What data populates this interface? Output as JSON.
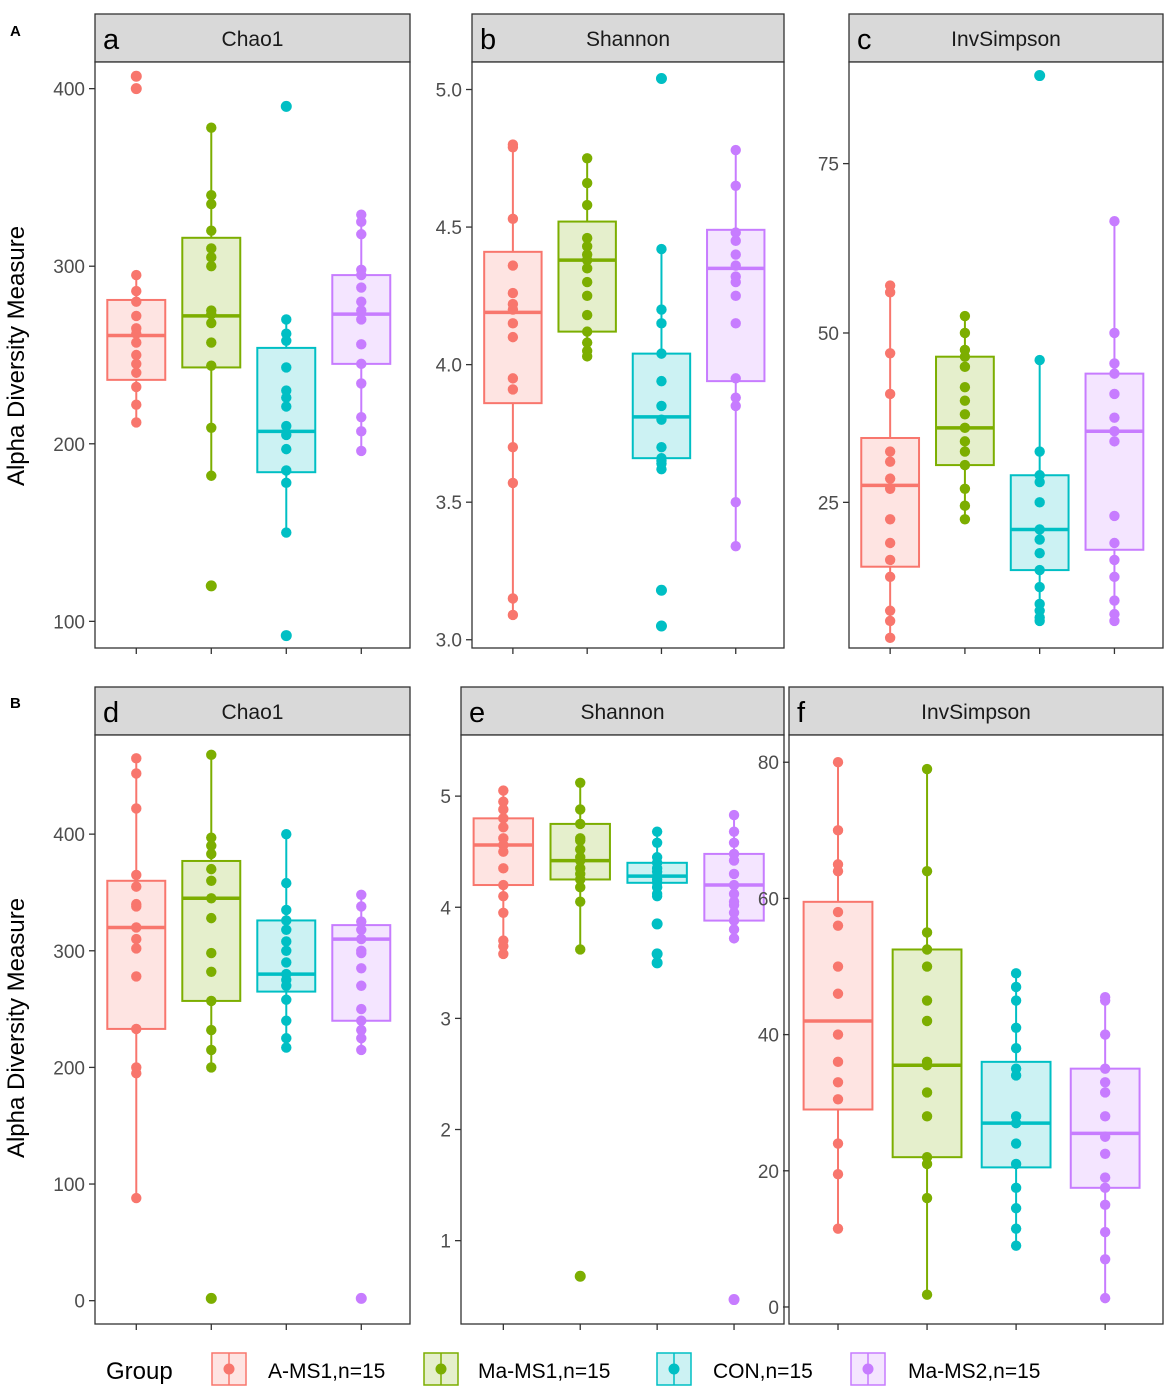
{
  "figure": {
    "row_labels": [
      "A",
      "B"
    ],
    "y_axis_title": "Alpha Diversity Measure",
    "legend_title": "Group"
  },
  "groups": [
    {
      "name": "A-MS1,n=15",
      "color": "#F8766D"
    },
    {
      "name": "Ma-MS1,n=15",
      "color": "#7CAE00"
    },
    {
      "name": "CON,n=15",
      "color": "#00BFC4"
    },
    {
      "name": "Ma-MS2,n=15",
      "color": "#C77CFF"
    }
  ],
  "chart_data": [
    {
      "panel": "a",
      "row": "A",
      "title": "Chao1",
      "type": "boxplot",
      "ylim": [
        85,
        415
      ],
      "yticks": [
        100,
        200,
        300,
        400
      ],
      "ytick_labels": [
        "100",
        "200",
        "300",
        "400"
      ],
      "categories": [
        "A-MS1,n=15",
        "Ma-MS1,n=15",
        "CON,n=15",
        "Ma-MS2,n=15"
      ],
      "boxes": [
        {
          "min": 212,
          "q1": 236,
          "median": 261,
          "q3": 281,
          "max": 295,
          "outliers": [
            400,
            407
          ]
        },
        {
          "min": 182,
          "q1": 243,
          "median": 272,
          "q3": 316,
          "max": 378,
          "outliers": [
            120
          ]
        },
        {
          "min": 150,
          "q1": 184,
          "median": 207,
          "q3": 254,
          "max": 270,
          "outliers": [
            92,
            390
          ]
        },
        {
          "min": 196,
          "q1": 245,
          "median": 273,
          "q3": 295,
          "max": 329,
          "outliers": []
        }
      ],
      "points": [
        [
          407,
          400,
          295,
          286,
          280,
          272,
          265,
          262,
          257,
          250,
          245,
          240,
          232,
          222,
          212
        ],
        [
          378,
          340,
          335,
          320,
          310,
          305,
          300,
          275,
          273,
          268,
          257,
          244,
          209,
          182,
          120
        ],
        [
          390,
          270,
          262,
          258,
          243,
          230,
          226,
          221,
          210,
          205,
          197,
          185,
          178,
          150,
          92
        ],
        [
          329,
          325,
          318,
          298,
          295,
          288,
          280,
          275,
          270,
          256,
          245,
          234,
          215,
          207,
          196
        ]
      ]
    },
    {
      "panel": "b",
      "row": "A",
      "title": "Shannon",
      "type": "boxplot",
      "ylim": [
        2.97,
        5.1
      ],
      "yticks": [
        3.0,
        3.5,
        4.0,
        4.5,
        5.0
      ],
      "ytick_labels": [
        "3.0",
        "3.5",
        "4.0",
        "4.5",
        "5.0"
      ],
      "categories": [
        "A-MS1,n=15",
        "Ma-MS1,n=15",
        "CON,n=15",
        "Ma-MS2,n=15"
      ],
      "boxes": [
        {
          "min": 3.09,
          "q1": 3.86,
          "median": 4.19,
          "q3": 4.41,
          "max": 4.8,
          "outliers": []
        },
        {
          "min": 4.03,
          "q1": 4.12,
          "median": 4.38,
          "q3": 4.52,
          "max": 4.75,
          "outliers": []
        },
        {
          "min": 3.62,
          "q1": 3.66,
          "median": 3.81,
          "q3": 4.04,
          "max": 4.42,
          "outliers": [
            3.05,
            3.18,
            5.04
          ]
        },
        {
          "min": 3.34,
          "q1": 3.94,
          "median": 4.35,
          "q3": 4.49,
          "max": 4.78,
          "outliers": []
        }
      ],
      "points": [
        [
          4.8,
          4.79,
          4.53,
          4.36,
          4.26,
          4.22,
          4.2,
          4.15,
          4.1,
          3.91,
          3.7,
          3.57,
          3.15,
          3.09,
          3.95
        ],
        [
          4.75,
          4.66,
          4.58,
          4.46,
          4.43,
          4.4,
          4.38,
          4.35,
          4.3,
          4.25,
          4.18,
          4.12,
          4.08,
          4.05,
          4.03
        ],
        [
          5.04,
          4.42,
          4.2,
          4.15,
          4.04,
          3.94,
          3.85,
          3.8,
          3.7,
          3.66,
          3.65,
          3.62,
          3.64,
          3.18,
          3.05
        ],
        [
          4.78,
          4.65,
          4.48,
          4.45,
          4.36,
          4.32,
          4.3,
          4.15,
          3.95,
          3.88,
          3.85,
          3.5,
          3.34,
          4.4,
          4.25
        ]
      ]
    },
    {
      "panel": "c",
      "row": "A",
      "title": "InvSimpson",
      "type": "boxplot",
      "ylim": [
        3.5,
        90
      ],
      "yticks": [
        25,
        50,
        75
      ],
      "ytick_labels": [
        "25",
        "50",
        "75"
      ],
      "categories": [
        "A-MS1,n=15",
        "Ma-MS1,n=15",
        "CON,n=15",
        "Ma-MS2,n=15"
      ],
      "boxes": [
        {
          "min": 5,
          "q1": 15.5,
          "median": 27.5,
          "q3": 34.5,
          "max": 57,
          "outliers": []
        },
        {
          "min": 22.5,
          "q1": 30.5,
          "median": 36,
          "q3": 46.5,
          "max": 52.5,
          "outliers": []
        },
        {
          "min": 7.5,
          "q1": 15,
          "median": 21,
          "q3": 29,
          "max": 46,
          "outliers": [
            88
          ]
        },
        {
          "min": 7.5,
          "q1": 18,
          "median": 35.5,
          "q3": 44,
          "max": 66.5,
          "outliers": []
        }
      ],
      "points": [
        [
          57,
          56,
          47,
          41,
          32.5,
          31,
          28.5,
          27,
          22.5,
          19,
          16.5,
          14,
          9,
          7.5,
          5
        ],
        [
          52.5,
          50,
          47.5,
          46.5,
          45,
          42,
          40,
          38,
          36,
          34,
          32.5,
          30.5,
          27,
          24.5,
          22.5
        ],
        [
          88,
          46,
          32.5,
          29,
          28,
          25,
          21,
          19.5,
          17.5,
          15,
          12.5,
          10,
          9,
          8,
          7.5
        ],
        [
          66.5,
          50,
          45.5,
          44,
          41,
          37.5,
          35.5,
          34,
          23,
          16.5,
          14,
          10.5,
          8.5,
          7.5,
          19
        ]
      ]
    },
    {
      "panel": "d",
      "row": "B",
      "title": "Chao1",
      "type": "boxplot",
      "ylim": [
        -20,
        485
      ],
      "yticks": [
        0,
        100,
        200,
        300,
        400
      ],
      "ytick_labels": [
        "0",
        "100",
        "200",
        "300",
        "400"
      ],
      "categories": [
        "A-MS1,n=15",
        "Ma-MS1,n=15",
        "CON,n=15",
        "Ma-MS2,n=15"
      ],
      "boxes": [
        {
          "min": 88,
          "q1": 233,
          "median": 320,
          "q3": 360,
          "max": 465,
          "outliers": []
        },
        {
          "min": 200,
          "q1": 257,
          "median": 345,
          "q3": 377,
          "max": 468,
          "outliers": [
            2
          ]
        },
        {
          "min": 217,
          "q1": 265,
          "median": 280,
          "q3": 326,
          "max": 400,
          "outliers": []
        },
        {
          "min": 215,
          "q1": 240,
          "median": 310,
          "q3": 322,
          "max": 348,
          "outliers": [
            2
          ]
        }
      ],
      "points": [
        [
          465,
          452,
          422,
          365,
          355,
          338,
          320,
          302,
          278,
          233,
          200,
          195,
          88,
          340,
          310
        ],
        [
          468,
          397,
          390,
          383,
          370,
          345,
          328,
          298,
          282,
          257,
          232,
          215,
          200,
          2,
          360
        ],
        [
          400,
          358,
          335,
          326,
          318,
          308,
          300,
          290,
          280,
          275,
          270,
          258,
          240,
          225,
          217
        ],
        [
          348,
          338,
          325,
          318,
          310,
          298,
          285,
          270,
          250,
          240,
          232,
          225,
          215,
          2,
          300
        ]
      ]
    },
    {
      "panel": "e",
      "row": "B",
      "title": "Shannon",
      "type": "boxplot",
      "ylim": [
        0.25,
        5.55
      ],
      "yticks": [
        1,
        2,
        3,
        4,
        5
      ],
      "ytick_labels": [
        "1",
        "2",
        "3",
        "4",
        "5"
      ],
      "categories": [
        "A-MS1,n=15",
        "Ma-MS1,n=15",
        "CON,n=15",
        "Ma-MS2,n=15"
      ],
      "boxes": [
        {
          "min": 3.58,
          "q1": 4.2,
          "median": 4.56,
          "q3": 4.8,
          "max": 5.05,
          "outliers": []
        },
        {
          "min": 3.62,
          "q1": 4.25,
          "median": 4.42,
          "q3": 4.75,
          "max": 5.12,
          "outliers": [
            0.68
          ]
        },
        {
          "min": 4.1,
          "q1": 4.22,
          "median": 4.28,
          "q3": 4.4,
          "max": 4.68,
          "outliers": [
            3.5,
            3.58,
            3.85
          ]
        },
        {
          "min": 3.7,
          "q1": 3.88,
          "median": 4.2,
          "q3": 4.48,
          "max": 4.83,
          "outliers": [
            0.47
          ]
        }
      ],
      "points": [
        [
          5.05,
          4.95,
          4.88,
          4.8,
          4.72,
          4.62,
          4.56,
          4.5,
          4.35,
          4.2,
          3.95,
          3.7,
          3.58,
          3.65,
          4.1
        ],
        [
          5.12,
          4.88,
          4.75,
          4.62,
          4.52,
          4.42,
          4.35,
          4.25,
          4.18,
          4.05,
          3.62,
          0.68,
          4.45,
          4.3,
          4.6
        ],
        [
          4.68,
          4.58,
          4.45,
          4.4,
          4.32,
          4.28,
          4.25,
          4.22,
          4.18,
          4.12,
          4.1,
          3.85,
          3.58,
          3.5,
          4.35
        ],
        [
          4.83,
          4.68,
          4.58,
          4.48,
          4.42,
          4.3,
          4.2,
          4.12,
          4.02,
          3.95,
          3.88,
          3.8,
          3.72,
          0.47,
          4.05
        ]
      ]
    },
    {
      "panel": "f",
      "row": "B",
      "title": "InvSimpson",
      "type": "boxplot",
      "ylim": [
        -2.5,
        84
      ],
      "yticks": [
        0,
        20,
        40,
        60,
        80
      ],
      "ytick_labels": [
        "0",
        "20",
        "40",
        "60",
        "80"
      ],
      "categories": [
        "A-MS1,n=15",
        "Ma-MS1,n=15",
        "CON,n=15",
        "Ma-MS2,n=15"
      ],
      "boxes": [
        {
          "min": 11.5,
          "q1": 29,
          "median": 42,
          "q3": 59.5,
          "max": 80,
          "outliers": []
        },
        {
          "min": 1.8,
          "q1": 22,
          "median": 35.5,
          "q3": 52.5,
          "max": 79,
          "outliers": []
        },
        {
          "min": 9,
          "q1": 20.5,
          "median": 27,
          "q3": 36,
          "max": 49,
          "outliers": []
        },
        {
          "min": 1.3,
          "q1": 17.5,
          "median": 25.5,
          "q3": 35,
          "max": 45.5,
          "outliers": []
        }
      ],
      "points": [
        [
          80,
          70,
          65,
          64,
          58,
          56,
          50,
          46,
          40,
          36,
          33,
          30.5,
          24,
          19.5,
          11.5
        ],
        [
          79,
          64,
          55,
          50,
          42,
          36,
          35.5,
          31.5,
          22,
          21,
          16,
          1.8,
          52.5,
          45,
          28
        ],
        [
          49,
          47,
          45,
          41,
          35,
          34,
          28,
          27,
          24,
          21,
          17.5,
          14.5,
          11.5,
          9,
          38
        ],
        [
          45.5,
          45,
          40,
          35,
          33,
          31.5,
          28,
          25,
          22.5,
          19,
          17.5,
          15,
          11,
          7,
          1.3
        ]
      ]
    }
  ]
}
